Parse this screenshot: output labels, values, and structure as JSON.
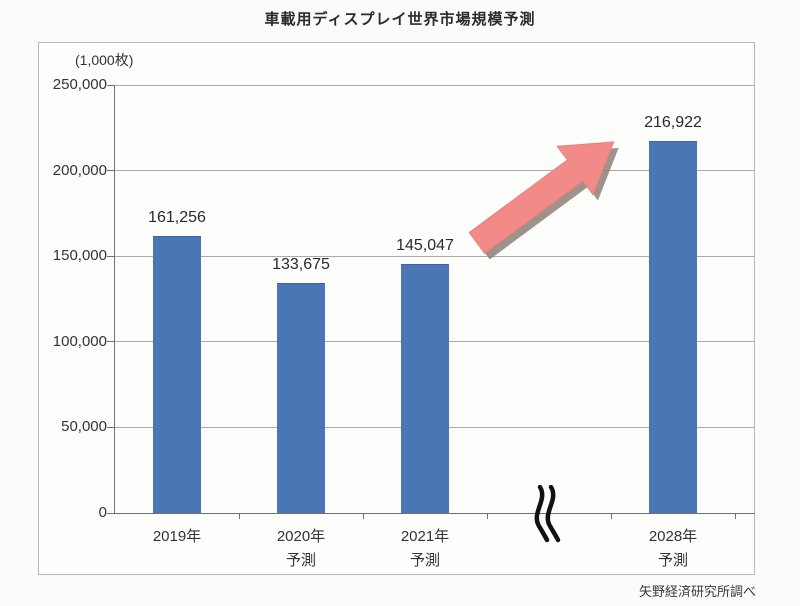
{
  "header": {
    "title": "車載用ディスプレイ世界市場規模予測"
  },
  "source_label": "矢野経済研究所調べ",
  "colors": {
    "bar": "#4a76b5",
    "arrow_fill": "#f28b87",
    "arrow_shadow": "#8d8077",
    "gridline": "#aaaaa6",
    "axis": "#6f6f6f"
  },
  "chart_data": {
    "type": "bar",
    "title": "車載用ディスプレイ世界市場規模予測",
    "unit_label": "(1,000枚)",
    "ylim": [
      0,
      250000
    ],
    "grid": true,
    "y_ticks": [
      {
        "v": 250000,
        "label": "250,000"
      },
      {
        "v": 200000,
        "label": "200,000"
      },
      {
        "v": 150000,
        "label": "150,000"
      },
      {
        "v": 100000,
        "label": "100,000"
      },
      {
        "v": 50000,
        "label": "50,000"
      },
      {
        "v": 0,
        "label": "0"
      }
    ],
    "categories": [
      "2019年",
      "2020年 予測",
      "2021年 予測",
      "2028年 予測"
    ],
    "values": [
      161256,
      133675,
      145047,
      216922
    ],
    "bars": [
      {
        "year": "2019年",
        "sub": "",
        "value": 161256,
        "label": "161,256",
        "slot": 0
      },
      {
        "year": "2020年",
        "sub": "予測",
        "value": 133675,
        "label": "133,675",
        "slot": 1
      },
      {
        "year": "2021年",
        "sub": "予測",
        "value": 145047,
        "label": "145,047",
        "slot": 2
      },
      {
        "year": "2028年",
        "sub": "予測",
        "value": 216922,
        "label": "216,922",
        "slot": 4
      }
    ],
    "slots": 5,
    "axis_break_slot": 3,
    "annotations": [
      "axis break between 2021 and 2028",
      "pink growth arrow pointing to 2028 bar"
    ]
  }
}
